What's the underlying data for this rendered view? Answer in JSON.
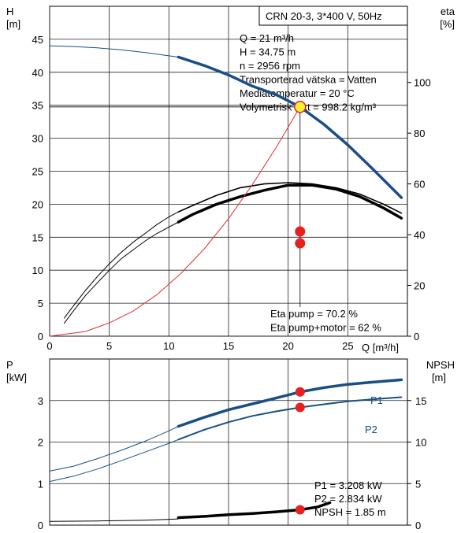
{
  "chart_data": [
    {
      "type": "line",
      "title": "CRN 20-3, 3*400 V, 50Hz",
      "xlabel": "Q [m³/h]",
      "ylabel": "H\n[m]",
      "y2label": "eta\n[%]",
      "xlim": [
        0,
        30
      ],
      "ylim": [
        0,
        50
      ],
      "y2lim": [
        0,
        130
      ],
      "xticks": [
        "0",
        "5",
        "10",
        "15",
        "20",
        "25"
      ],
      "yticks": [
        "0",
        "5",
        "10",
        "15",
        "20",
        "25",
        "30",
        "35",
        "40",
        "45"
      ],
      "y2ticks": [
        "0",
        "20",
        "40",
        "60",
        "80",
        "100"
      ],
      "grid": true,
      "series": [
        {
          "name": "H",
          "axis": "left",
          "color": "#1a4f86",
          "thin_x": [
            0,
            2,
            4,
            6,
            8,
            10,
            10.8
          ],
          "thin_y": [
            44.0,
            43.9,
            43.7,
            43.4,
            43.0,
            42.5,
            42.3
          ],
          "thick_x": [
            10.8,
            13,
            15,
            17,
            19,
            21,
            23,
            25,
            27,
            29.5
          ],
          "thick_y": [
            42.3,
            41.0,
            39.6,
            37.9,
            36.6,
            34.75,
            32.1,
            29.0,
            25.5,
            21.0
          ]
        },
        {
          "name": "Eta pump",
          "axis": "right",
          "color": "#000000",
          "thin_x": [
            1.2,
            2,
            3,
            4,
            5,
            6,
            7,
            8,
            9,
            10,
            10.8
          ],
          "thin_y": [
            7,
            12,
            18,
            23.5,
            28.5,
            33,
            37,
            40.5,
            44,
            47,
            49
          ],
          "thick_x": [
            10.8,
            12,
            14,
            16,
            18,
            20,
            21,
            22,
            24,
            26,
            28,
            29.5
          ],
          "thick_y": [
            49,
            51.5,
            55.5,
            58.5,
            60,
            60.5,
            70.2,
            60,
            58.5,
            56,
            52,
            48.5
          ]
        },
        {
          "name": "Eta pump+motor",
          "axis": "right",
          "color": "#000000",
          "thin_x": [
            1.2,
            2,
            3,
            4,
            5,
            6,
            7,
            8,
            9,
            10,
            10.8
          ],
          "thin_y": [
            5,
            10,
            16,
            21,
            26,
            30.5,
            34,
            37.5,
            40.5,
            43,
            45
          ],
          "thick_x": [
            10.8,
            12,
            14,
            16,
            18,
            20,
            21,
            22,
            24,
            26,
            28,
            29.5
          ],
          "thick_y": [
            45,
            48,
            52,
            55,
            57.5,
            59.5,
            62,
            59.5,
            58,
            55,
            50.5,
            46.5
          ]
        },
        {
          "name": "System curve",
          "axis": "left",
          "color": "#e03030",
          "x": [
            0,
            3,
            5,
            7,
            9,
            11,
            13,
            15,
            17,
            19,
            21
          ],
          "y": [
            0,
            0.7,
            2.0,
            3.8,
            6.3,
            9.5,
            13.3,
            17.8,
            23.0,
            28.6,
            34.75
          ]
        }
      ],
      "operating_point": {
        "x": 21,
        "H": 34.75,
        "eta_pump": 70.2,
        "eta_total": 62
      },
      "annotations": {
        "info_lines": [
          "Q = 21 m³/h",
          "H = 34.75 m",
          "n = 2956 rpm",
          "Transporterad vätska = Vatten",
          "Mediatemperatur = 20 °C",
          "Volymetrisk vikt = 998.2 kg/m³"
        ],
        "eta_lines": [
          "Eta pump = 70.2 %",
          "Eta pump+motor = 62 %"
        ]
      }
    },
    {
      "type": "line",
      "ylabel": "P\n[kW]",
      "y2label": "NPSH\n[m]",
      "xlim": [
        0,
        30
      ],
      "ylim": [
        0,
        4
      ],
      "y2lim": [
        0,
        20
      ],
      "yticks": [
        "0",
        "1",
        "2",
        "3"
      ],
      "y2ticks": [
        "0",
        "5",
        "10",
        "15"
      ],
      "grid": true,
      "series": [
        {
          "name": "P1",
          "axis": "left",
          "color": "#1a4f86",
          "thin_x": [
            0,
            2,
            4,
            6,
            8,
            10,
            10.8
          ],
          "thin_y": [
            1.3,
            1.42,
            1.6,
            1.8,
            2.02,
            2.27,
            2.38
          ],
          "thick_x": [
            10.8,
            13,
            15,
            17,
            19,
            21,
            23,
            25,
            27,
            29.5
          ],
          "thick_y": [
            2.38,
            2.6,
            2.78,
            2.92,
            3.06,
            3.208,
            3.31,
            3.39,
            3.44,
            3.5
          ]
        },
        {
          "name": "P2",
          "axis": "left",
          "color": "#1a4f86",
          "thin_x": [
            0,
            2,
            4,
            6,
            8,
            10,
            10.8
          ],
          "thin_y": [
            1.05,
            1.18,
            1.35,
            1.55,
            1.76,
            1.97,
            2.06
          ],
          "thick_x": [
            10.8,
            13,
            15,
            17,
            19,
            21,
            23,
            25,
            27,
            29.5
          ],
          "thick_y": [
            2.06,
            2.3,
            2.48,
            2.63,
            2.74,
            2.834,
            2.91,
            2.98,
            3.03,
            3.08
          ]
        },
        {
          "name": "NPSH",
          "axis": "right",
          "color": "#000000",
          "thin_x": [
            0,
            2,
            4,
            6,
            8,
            10,
            10.8
          ],
          "thin_y": [
            0.45,
            0.47,
            0.5,
            0.55,
            0.6,
            0.7,
            0.75
          ],
          "thick_x": [
            10.8,
            13,
            15,
            17,
            19,
            21,
            22.5,
            23.5
          ],
          "thick_y": [
            0.9,
            1.05,
            1.25,
            1.4,
            1.6,
            1.85,
            2.2,
            2.7
          ]
        }
      ],
      "operating_point": {
        "x": 21,
        "P1": 3.208,
        "P2": 2.834,
        "NPSH": 1.85
      },
      "annotations": {
        "series_labels": [
          "P1",
          "P2"
        ],
        "info_lines": [
          "P1 = 3.208 kW",
          "P2 = 2.834 kW",
          "NPSH = 1.85 m"
        ]
      }
    }
  ]
}
